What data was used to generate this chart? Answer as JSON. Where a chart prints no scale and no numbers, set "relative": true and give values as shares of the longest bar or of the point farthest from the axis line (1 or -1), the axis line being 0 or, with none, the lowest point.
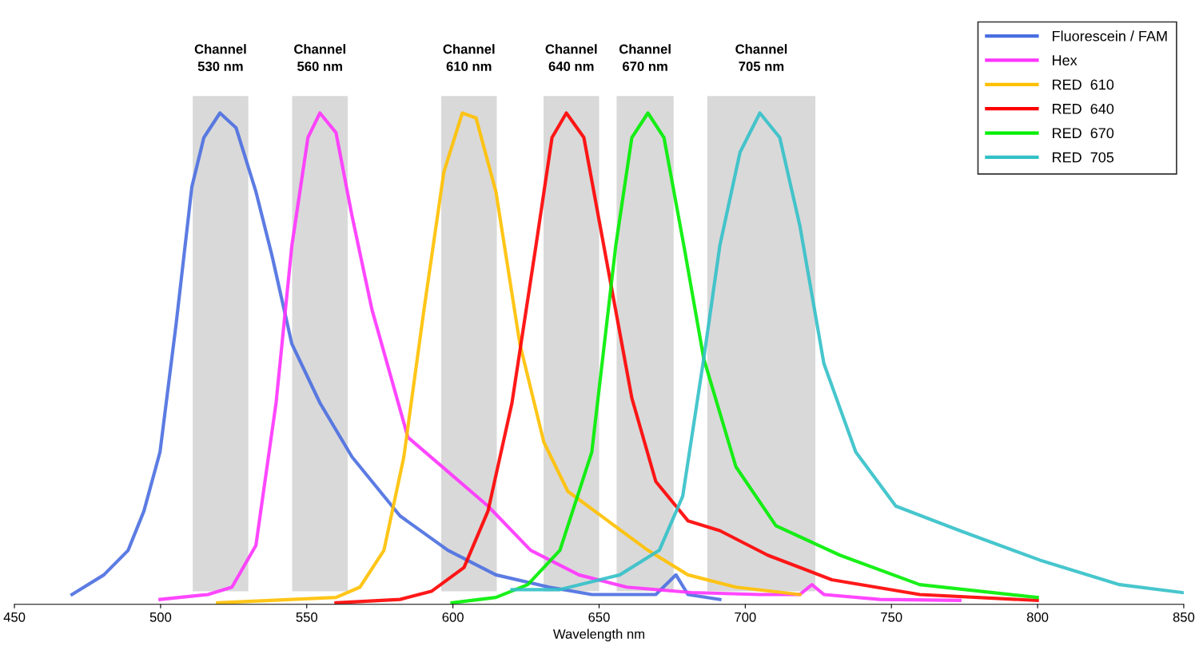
{
  "chart_data": {
    "type": "line",
    "relative": true,
    "xlabel": "Wavelength nm",
    "xlim": [
      450,
      850
    ],
    "xticks": [
      450,
      500,
      550,
      600,
      650,
      700,
      750,
      800,
      850
    ],
    "legend": "top right",
    "grid": false,
    "line_style": "solid",
    "marker": "none",
    "bands": [
      {
        "axis": "x",
        "from": 511,
        "to": 530,
        "label": "Channel\n530 nm",
        "color": "#d9d9d9"
      },
      {
        "axis": "x",
        "from": 545,
        "to": 564,
        "label": "Channel\n560 nm",
        "color": "#d9d9d9"
      },
      {
        "axis": "x",
        "from": 596,
        "to": 615,
        "label": "Channel\n610 nm",
        "color": "#d9d9d9"
      },
      {
        "axis": "x",
        "from": 631,
        "to": 650,
        "label": "Channel\n640 nm",
        "color": "#d9d9d9"
      },
      {
        "axis": "x",
        "from": 656,
        "to": 675.5,
        "label": "Channel\n670 nm",
        "color": "#d9d9d9"
      },
      {
        "axis": "x",
        "from": 687,
        "to": 724,
        "label": "Channel\n705 nm",
        "color": "#d9d9d9"
      }
    ],
    "series": [
      {
        "name": "Fluorescein / FAM",
        "color": "#4a6ee0",
        "x": [
          469.7,
          480.6,
          488.9,
          494.3,
          499.8,
          505.3,
          510.7,
          514.8,
          520.3,
          525.8,
          532.6,
          538.1,
          544.9,
          554.5,
          565.5,
          581.9,
          598.3,
          614.7,
          632.9,
          647.5,
          669.4,
          676.3,
          680.4,
          691.3
        ],
        "values": [
          0.02,
          0.06,
          0.11,
          0.19,
          0.31,
          0.57,
          0.85,
          0.95,
          1.0,
          0.97,
          0.84,
          0.71,
          0.53,
          0.41,
          0.3,
          0.18,
          0.11,
          0.06,
          0.035,
          0.02,
          0.02,
          0.06,
          0.02,
          0.01
        ]
      },
      {
        "name": "Hex",
        "color": "#ff33ff",
        "x": [
          499.8,
          516.2,
          524.4,
          532.6,
          539.5,
          544.9,
          550.4,
          554.5,
          560,
          565.5,
          572.3,
          584.6,
          598.3,
          612,
          626.6,
          643.1,
          659.5,
          681.6,
          705,
          718.7,
          722.8,
          726.9,
          746,
          773.4
        ],
        "values": [
          0.01,
          0.02,
          0.035,
          0.12,
          0.41,
          0.73,
          0.95,
          1.0,
          0.96,
          0.79,
          0.6,
          0.34,
          0.27,
          0.2,
          0.11,
          0.06,
          0.035,
          0.024,
          0.02,
          0.02,
          0.04,
          0.02,
          0.01,
          0.008
        ]
      },
      {
        "name": "RED  610",
        "color": "#ffc000",
        "x": [
          519.5,
          560,
          568.2,
          576.4,
          583.2,
          590.1,
          596.9,
          603.2,
          607.9,
          614.7,
          622.9,
          631.1,
          639.3,
          653,
          666.7,
          680.4,
          696.8,
          718.7
        ],
        "values": [
          0.003,
          0.014,
          0.035,
          0.11,
          0.3,
          0.6,
          0.88,
          1.0,
          0.99,
          0.84,
          0.53,
          0.33,
          0.23,
          0.17,
          0.11,
          0.06,
          0.035,
          0.02
        ]
      },
      {
        "name": "RED  640",
        "color": "#ff0000",
        "x": [
          560,
          581.9,
          592.8,
          603.8,
          612,
          620.2,
          628.4,
          633.9,
          638.8,
          644.8,
          651.6,
          661.2,
          669.4,
          680.4,
          691.3,
          707.7,
          729.6,
          759.7,
          799.9
        ],
        "values": [
          0.003,
          0.01,
          0.027,
          0.075,
          0.19,
          0.41,
          0.73,
          0.95,
          1.0,
          0.95,
          0.73,
          0.42,
          0.25,
          0.17,
          0.15,
          0.1,
          0.05,
          0.02,
          0.008
        ]
      },
      {
        "name": "RED  670",
        "color": "#00ee00",
        "x": [
          599.7,
          614.7,
          625.6,
          636.6,
          647.5,
          655.7,
          661.2,
          666.7,
          672.2,
          679,
          685.8,
          696.8,
          710.5,
          732.4,
          759.7,
          799.9
        ],
        "values": [
          0.003,
          0.014,
          0.04,
          0.11,
          0.31,
          0.73,
          0.95,
          1.0,
          0.95,
          0.73,
          0.5,
          0.28,
          0.16,
          0.1,
          0.04,
          0.014
        ]
      },
      {
        "name": "RED  705",
        "color": "#33c0c8",
        "x": [
          620.2,
          636.6,
          657.1,
          670.6,
          678.6,
          685.8,
          691.3,
          698.2,
          705,
          711.8,
          718.7,
          726.9,
          737.8,
          751.5,
          773.4,
          800.8,
          828.1,
          849.5
        ],
        "values": [
          0.03,
          0.03,
          0.06,
          0.11,
          0.22,
          0.5,
          0.73,
          0.92,
          1.0,
          0.95,
          0.77,
          0.49,
          0.31,
          0.2,
          0.15,
          0.09,
          0.04,
          0.024
        ]
      }
    ]
  }
}
